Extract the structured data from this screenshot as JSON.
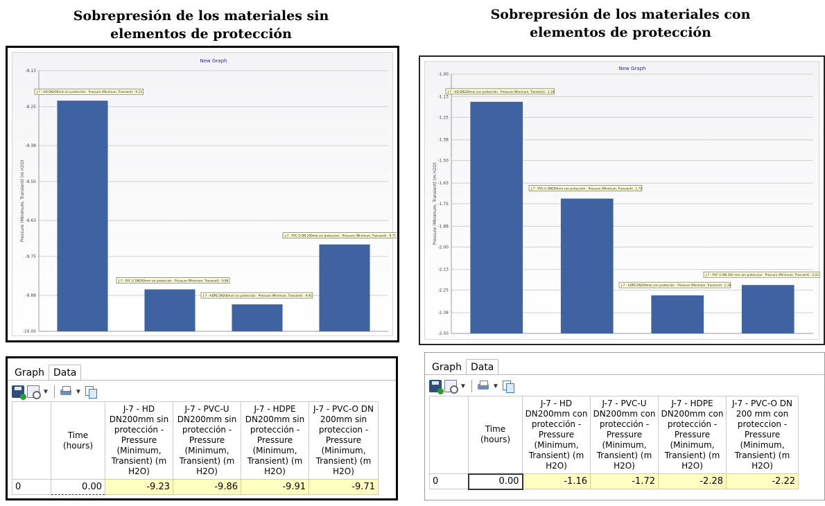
{
  "left": {
    "title_line1": "Sobrepresión de los materiales sin",
    "title_line2": "elementos de protección",
    "tabs": [
      "Graph",
      "Data"
    ],
    "table": {
      "time_header": "Time (hours)",
      "columns": [
        "J-7 - HD DN200mm sin protección - Pressure (Minimum, Transient) (m H2O)",
        "J-7 - PVC-U DN200mm sin protección - Pressure (Minimum, Transient) (m H2O)",
        "J-7 - HDPE DN200mm sin protección - Pressure (Minimum, Transient) (m H2O)",
        "J-7 - PVC-O DN 200mm sin proteccion - Pressure (Minimum, Transient) (m H2O)"
      ],
      "row_label": "0",
      "time": "0.00",
      "values": [
        "-9.23",
        "-9.86",
        "-9.91",
        "-9.71"
      ]
    }
  },
  "right": {
    "title_line1": "Sobrepresión de los materiales con",
    "title_line2": "elementos de protección",
    "tabs": [
      "Graph",
      "Data"
    ],
    "table": {
      "time_header": "Time (hours)",
      "columns": [
        "J-7 - HD DN200mm con protección - Pressure (Minimum, Transient) (m H2O)",
        "J-7 - PVC-U DN200mm con protección - Pressure (Minimum, Transient) (m H2O)",
        "J-7 - HDPE DN200mm con protección - Pressure (Minimum, Transient) (m H2O)",
        "J-7 - PVC-O DN 200 mm con proteccion - Pressure (Minimum, Transient) (m H2O)"
      ],
      "row_label": "0",
      "time": "0.00",
      "values": [
        "-1.16",
        "-1.72",
        "-2.28",
        "-2.22"
      ]
    }
  },
  "chart_data": [
    {
      "type": "bar",
      "title": "New Graph",
      "ylabel": "Pressure (Minimum, Transient) (m H2O)",
      "ylim": [
        -10.0,
        -9.13
      ],
      "yticks": [
        -9.13,
        -9.25,
        -9.38,
        -9.5,
        -9.63,
        -9.75,
        -9.88,
        -10.0
      ],
      "ytick_labels": [
        "-9.13",
        "-9.25",
        "-9.38",
        "-9.50",
        "-9.63",
        "-9.75",
        "-9.88",
        "-10.00"
      ],
      "grid": true,
      "bar_color": "#3f62a0",
      "values": [
        -9.23,
        -9.86,
        -9.91,
        -9.71
      ],
      "data_labels": [
        "J-7 - HD DN200mm sin protección - Pressure (Minimum, Transient): -9.23",
        "J-7 - PVC-U DN200mm sin protección - Pressure (Minimum, Transient): -9.86",
        "J-7 - HDPE DN200mm sin protección - Pressure (Minimum, Transient): -9.91",
        "J-7 - PVC-O DN 200mm sin proteccion - Pressure (Minimum, Transient): -9.71"
      ]
    },
    {
      "type": "bar",
      "title": "New Graph",
      "ylabel": "Pressure (Minimum, Transient) (m H2O)",
      "ylim": [
        -2.5,
        -1.0
      ],
      "yticks": [
        -1.0,
        -1.13,
        -1.25,
        -1.38,
        -1.5,
        -1.63,
        -1.75,
        -1.88,
        -2.0,
        -2.13,
        -2.25,
        -2.38,
        -2.5
      ],
      "ytick_labels": [
        "-1.00",
        "-1.13",
        "-1.25",
        "-1.38",
        "-1.50",
        "-1.63",
        "-1.75",
        "-1.88",
        "-2.00",
        "-2.13",
        "-2.25",
        "-2.38",
        "-2.50"
      ],
      "grid": true,
      "bar_color": "#3f62a0",
      "values": [
        -1.16,
        -1.72,
        -2.28,
        -2.22
      ],
      "data_labels": [
        "J-7 - HD DN200mm con protección - Pressure (Minimum, Transient): -1.16",
        "J-7 - PVC-U DN200mm con protección - Pressure (Minimum, Transient): -1.72",
        "J-7 - HDPE DN200mm con protección - Pressure (Minimum, Transient): -2.28",
        "J-7 - PVC-O DN 200 mm con proteccion - Pressure (Minimum, Transient): -2.22"
      ]
    }
  ]
}
